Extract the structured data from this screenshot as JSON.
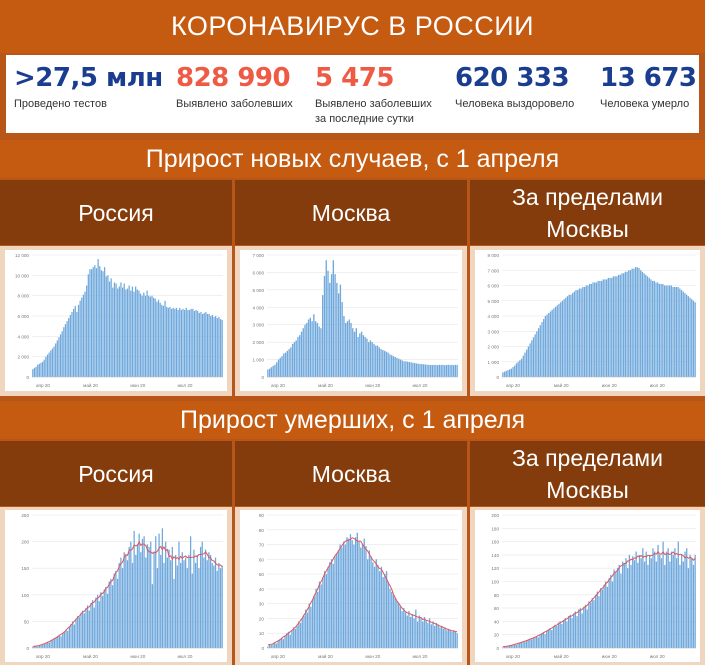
{
  "title": "КОРОНАВИРУС В РОССИИ",
  "stats": [
    {
      "value": ">27,5 млн",
      "label": "Проведено тестов",
      "color": "#1a3d8f"
    },
    {
      "value": "828 990",
      "label": "Выявлено заболевших",
      "color": "#ef5a45"
    },
    {
      "value": "5 475",
      "label": "Выявлено заболевших за последние сутки",
      "color": "#ef5a45"
    },
    {
      "value": "620 333",
      "label": "Человека выздоровело",
      "color": "#1a3d8f"
    },
    {
      "value": "13 673",
      "label": "Человека умерло",
      "color": "#1a3d8f"
    }
  ],
  "sections": {
    "new_cases": "Прирост новых случаев, с 1 апреля",
    "deaths": "Прирост умерших, с 1 апреля"
  },
  "regions": {
    "russia": "Россия",
    "moscow": "Москва",
    "outside": "За пределами Москвы"
  },
  "colors": {
    "bar": "#6fa8dc",
    "trend": "#e0555a",
    "orange": "#c55a11",
    "brown": "#843c0c"
  },
  "chart_data": [
    {
      "type": "bar",
      "title": "Россия — прирост новых случаев",
      "x_ticks": [
        "апр 20",
        "май 20",
        "июн 20",
        "июл 20"
      ],
      "y_ticks": [
        "0",
        "2 000",
        "4 000",
        "6 000",
        "8 000",
        "10 000",
        "12 000"
      ],
      "ylim": [
        0,
        12000
      ],
      "values": [
        770,
        900,
        1000,
        1200,
        1300,
        1400,
        1500,
        1700,
        2000,
        2200,
        2400,
        2600,
        2800,
        3000,
        3300,
        3600,
        3900,
        4200,
        4500,
        4900,
        5200,
        5500,
        5800,
        6100,
        6400,
        6700,
        7000,
        6400,
        7100,
        7500,
        7800,
        8100,
        8400,
        9000,
        10100,
        10600,
        10600,
        10800,
        11000,
        10700,
        11600,
        10900,
        10500,
        10400,
        10800,
        9900,
        10000,
        9400,
        9700,
        8800,
        9300,
        9200,
        8700,
        8900,
        9300,
        8800,
        9200,
        8600,
        8700,
        9000,
        8500,
        8900,
        8400,
        8900,
        8600,
        8500,
        8200,
        8000,
        8300,
        8000,
        8500,
        8000,
        7900,
        8000,
        7800,
        7700,
        7400,
        7600,
        7300,
        7100,
        7000,
        7500,
        6900,
        6800,
        6900,
        6700,
        6800,
        6700,
        6800,
        6600,
        6800,
        6600,
        6700,
        6600,
        6800,
        6600,
        6600,
        6700,
        6700,
        6500,
        6600,
        6500,
        6300,
        6400,
        6200,
        6300,
        6400,
        6200,
        6200,
        6000,
        6100,
        5900,
        6000,
        5800,
        5900,
        5700,
        5600
      ]
    },
    {
      "type": "bar",
      "title": "Москва — прирост новых случаев",
      "x_ticks": [
        "апр 20",
        "май 20",
        "июн 20",
        "июл 20"
      ],
      "y_ticks": [
        "0",
        "1 000",
        "2 000",
        "3 000",
        "4 000",
        "5 000",
        "6 000",
        "7 000"
      ],
      "ylim": [
        0,
        7000
      ],
      "values": [
        430,
        480,
        560,
        640,
        700,
        840,
        1000,
        1100,
        1200,
        1350,
        1400,
        1500,
        1600,
        1700,
        1900,
        2000,
        2100,
        2300,
        2400,
        2600,
        2800,
        3000,
        3100,
        3300,
        3400,
        3200,
        3600,
        3200,
        3100,
        2900,
        2800,
        4700,
        5800,
        6700,
        6100,
        5400,
        5900,
        6700,
        5900,
        5400,
        4800,
        5300,
        4300,
        3500,
        3100,
        3200,
        3300,
        3100,
        2800,
        2600,
        2800,
        2300,
        2500,
        2600,
        2400,
        2300,
        2200,
        2000,
        2100,
        2000,
        1900,
        1800,
        1800,
        1700,
        1600,
        1550,
        1500,
        1450,
        1400,
        1300,
        1250,
        1200,
        1150,
        1100,
        1050,
        1000,
        950,
        900,
        900,
        880,
        860,
        840,
        820,
        800,
        780,
        760,
        750,
        740,
        730,
        720,
        700,
        700,
        690,
        690,
        700,
        690,
        680,
        700,
        690,
        700,
        680,
        690,
        700,
        690,
        700,
        680,
        700,
        690
      ]
    },
    {
      "type": "bar",
      "title": "За пределами Москвы — прирост новых случаев",
      "x_ticks": [
        "апр 20",
        "май 20",
        "июн 20",
        "июл 20"
      ],
      "y_ticks": [
        "0",
        "1 000",
        "2 000",
        "3 000",
        "4 000",
        "5 000",
        "6 000",
        "7 000",
        "8 000"
      ],
      "ylim": [
        0,
        8000
      ],
      "values": [
        300,
        350,
        400,
        450,
        500,
        550,
        650,
        750,
        900,
        1000,
        1100,
        1200,
        1400,
        1600,
        1800,
        2000,
        2200,
        2400,
        2600,
        2800,
        3000,
        3200,
        3400,
        3600,
        3800,
        4000,
        4100,
        4200,
        4300,
        4400,
        4500,
        4600,
        4700,
        4800,
        4900,
        5000,
        5100,
        5200,
        5300,
        5400,
        5400,
        5500,
        5600,
        5700,
        5700,
        5800,
        5800,
        5900,
        5900,
        6000,
        6000,
        6100,
        6100,
        6200,
        6200,
        6200,
        6300,
        6300,
        6300,
        6400,
        6400,
        6400,
        6500,
        6500,
        6500,
        6600,
        6600,
        6600,
        6700,
        6700,
        6800,
        6800,
        6900,
        6900,
        7000,
        7000,
        7100,
        7100,
        7200,
        7200,
        7150,
        7000,
        6900,
        6800,
        6700,
        6600,
        6500,
        6400,
        6300,
        6300,
        6200,
        6200,
        6100,
        6100,
        6100,
        6000,
        6000,
        6000,
        6000,
        6000,
        5900,
        5900,
        5900,
        5900,
        5800,
        5700,
        5600,
        5500,
        5400,
        5300,
        5200,
        5100,
        5000,
        4900
      ]
    },
    {
      "type": "bar",
      "title": "Россия — прирост умерших",
      "x_ticks": [
        "апр 20",
        "май 20",
        "июн 20",
        "июл 20"
      ],
      "y_ticks": [
        "0",
        "50",
        "100",
        "150",
        "200",
        "250"
      ],
      "ylim": [
        0,
        250
      ],
      "values": [
        2,
        3,
        4,
        3,
        5,
        6,
        7,
        8,
        9,
        12,
        10,
        14,
        15,
        18,
        20,
        22,
        25,
        22,
        28,
        30,
        35,
        32,
        40,
        45,
        50,
        44,
        55,
        60,
        58,
        66,
        70,
        65,
        75,
        80,
        70,
        85,
        90,
        76,
        95,
        100,
        88,
        105,
        98,
        110,
        115,
        102,
        125,
        130,
        118,
        140,
        145,
        130,
        160,
        170,
        150,
        180,
        174,
        165,
        190,
        200,
        160,
        220,
        175,
        195,
        215,
        180,
        205,
        210,
        170,
        195,
        190,
        200,
        120,
        180,
        210,
        150,
        215,
        175,
        225,
        160,
        200,
        170,
        185,
        165,
        190,
        130,
        175,
        155,
        200,
        160,
        180,
        165,
        170,
        150,
        175,
        210,
        140,
        185,
        160,
        175,
        150,
        190,
        200,
        170,
        185,
        165,
        180,
        175,
        160,
        155,
        170,
        145,
        160,
        150,
        155
      ]
    },
    {
      "type": "bar",
      "title": "Москва — прирост умерших",
      "x_ticks": [
        "апр 20",
        "май 20",
        "июн 20",
        "июл 20"
      ],
      "y_ticks": [
        "0",
        "10",
        "20",
        "30",
        "40",
        "50",
        "60",
        "70",
        "80",
        "90"
      ],
      "ylim": [
        0,
        90
      ],
      "values": [
        1,
        2,
        2,
        3,
        4,
        3,
        5,
        6,
        7,
        6,
        8,
        10,
        11,
        9,
        12,
        14,
        13,
        15,
        18,
        17,
        20,
        22,
        26,
        24,
        30,
        28,
        33,
        35,
        40,
        38,
        45,
        43,
        48,
        52,
        50,
        55,
        58,
        60,
        57,
        62,
        64,
        66,
        70,
        68,
        72,
        70,
        75,
        74,
        77,
        73,
        70,
        75,
        78,
        72,
        68,
        70,
        74,
        69,
        60,
        66,
        62,
        58,
        55,
        60,
        56,
        52,
        55,
        48,
        50,
        52,
        45,
        40,
        38,
        36,
        34,
        32,
        30,
        28,
        25,
        27,
        24,
        22,
        25,
        21,
        23,
        20,
        26,
        18,
        22,
        20,
        18,
        21,
        19,
        17,
        20,
        16,
        18,
        15,
        17,
        16,
        14,
        15,
        13,
        14,
        12,
        13,
        12,
        11,
        12,
        11,
        10
      ]
    },
    {
      "type": "bar",
      "title": "За пределами Москвы — прирост умерших",
      "x_ticks": [
        "апр 20",
        "май 20",
        "июн 20",
        "июл 20"
      ],
      "y_ticks": [
        "0",
        "20",
        "40",
        "60",
        "80",
        "100",
        "120",
        "140",
        "160",
        "180",
        "200"
      ],
      "ylim": [
        0,
        200
      ],
      "values": [
        1,
        2,
        2,
        3,
        3,
        4,
        5,
        6,
        5,
        7,
        8,
        9,
        10,
        9,
        11,
        12,
        14,
        13,
        15,
        17,
        18,
        16,
        20,
        22,
        24,
        21,
        26,
        28,
        30,
        27,
        32,
        35,
        33,
        38,
        40,
        36,
        42,
        45,
        40,
        48,
        50,
        45,
        52,
        55,
        48,
        58,
        60,
        52,
        62,
        65,
        58,
        70,
        68,
        75,
        72,
        80,
        85,
        78,
        90,
        88,
        95,
        100,
        92,
        105,
        110,
        100,
        118,
        115,
        120,
        125,
        112,
        130,
        128,
        135,
        120,
        140,
        125,
        138,
        132,
        145,
        128,
        140,
        135,
        150,
        130,
        145,
        125,
        140,
        135,
        150,
        145,
        130,
        155,
        140,
        135,
        160,
        125,
        145,
        150,
        130,
        145,
        140,
        150,
        135,
        160,
        125,
        140,
        130,
        145,
        150,
        120,
        140,
        135,
        125,
        140
      ]
    }
  ]
}
